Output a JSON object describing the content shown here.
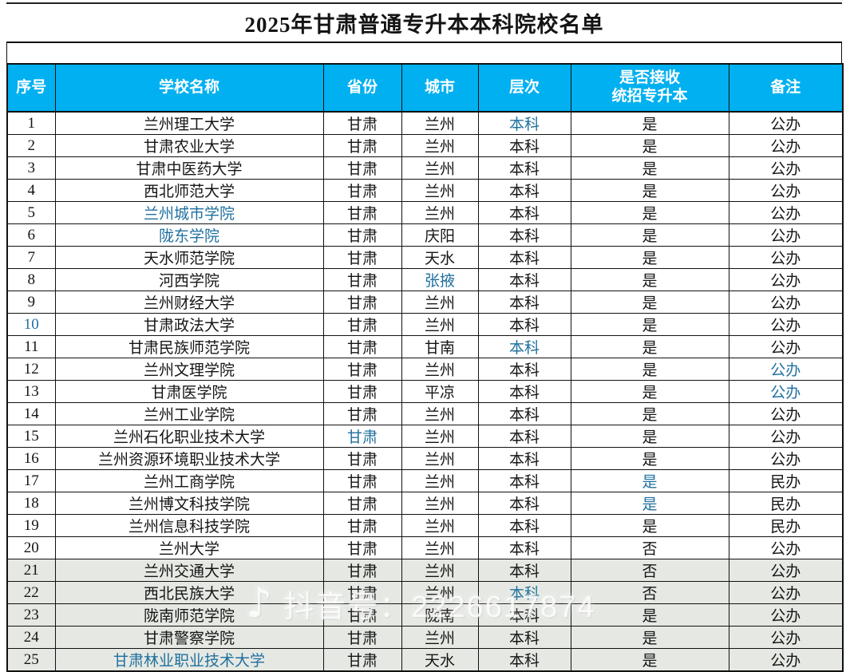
{
  "title": "2025年甘肃普通专升本本科院校名单",
  "colors": {
    "header_bg": "#00b0f0",
    "header_text": "#ffffff",
    "link_blue": "#20709f",
    "shaded_row_bg": "#e6e9e3"
  },
  "watermark": {
    "icon": "douyin-note-icon",
    "note_glyph": "♪",
    "text": "抖音号：2226617874"
  },
  "table": {
    "keys": [
      "no",
      "school",
      "province",
      "city",
      "level",
      "accept",
      "remark"
    ],
    "headers": {
      "no": "序号",
      "school": "学校名称",
      "province": "省份",
      "city": "城市",
      "level": "层次",
      "accept_line1": "是否接收",
      "accept_line2": "统招专升本",
      "remark": "备注"
    },
    "rows": [
      {
        "no": "1",
        "school": "兰州理工大学",
        "province": "甘肃",
        "city": "兰州",
        "level": "本科",
        "accept": "是",
        "remark": "公办",
        "blue": [
          "level"
        ],
        "shade": false
      },
      {
        "no": "2",
        "school": "甘肃农业大学",
        "province": "甘肃",
        "city": "兰州",
        "level": "本科",
        "accept": "是",
        "remark": "公办",
        "blue": [],
        "shade": false
      },
      {
        "no": "3",
        "school": "甘肃中医药大学",
        "province": "甘肃",
        "city": "兰州",
        "level": "本科",
        "accept": "是",
        "remark": "公办",
        "blue": [],
        "shade": false
      },
      {
        "no": "4",
        "school": "西北师范大学",
        "province": "甘肃",
        "city": "兰州",
        "level": "本科",
        "accept": "是",
        "remark": "公办",
        "blue": [],
        "shade": false
      },
      {
        "no": "5",
        "school": "兰州城市学院",
        "province": "甘肃",
        "city": "兰州",
        "level": "本科",
        "accept": "是",
        "remark": "公办",
        "blue": [
          "school"
        ],
        "shade": false
      },
      {
        "no": "6",
        "school": "陇东学院",
        "province": "甘肃",
        "city": "庆阳",
        "level": "本科",
        "accept": "是",
        "remark": "公办",
        "blue": [
          "school"
        ],
        "shade": false
      },
      {
        "no": "7",
        "school": "天水师范学院",
        "province": "甘肃",
        "city": "天水",
        "level": "本科",
        "accept": "是",
        "remark": "公办",
        "blue": [],
        "shade": false
      },
      {
        "no": "8",
        "school": "河西学院",
        "province": "甘肃",
        "city": "张掖",
        "level": "本科",
        "accept": "是",
        "remark": "公办",
        "blue": [
          "city"
        ],
        "shade": false
      },
      {
        "no": "9",
        "school": "兰州财经大学",
        "province": "甘肃",
        "city": "兰州",
        "level": "本科",
        "accept": "是",
        "remark": "公办",
        "blue": [],
        "shade": false
      },
      {
        "no": "10",
        "school": "甘肃政法大学",
        "province": "甘肃",
        "city": "兰州",
        "level": "本科",
        "accept": "是",
        "remark": "公办",
        "blue": [
          "no"
        ],
        "shade": false
      },
      {
        "no": "11",
        "school": "甘肃民族师范学院",
        "province": "甘肃",
        "city": "甘南",
        "level": "本科",
        "accept": "是",
        "remark": "公办",
        "blue": [
          "level"
        ],
        "shade": false
      },
      {
        "no": "12",
        "school": "兰州文理学院",
        "province": "甘肃",
        "city": "兰州",
        "level": "本科",
        "accept": "是",
        "remark": "公办",
        "blue": [
          "remark"
        ],
        "shade": false
      },
      {
        "no": "13",
        "school": "甘肃医学院",
        "province": "甘肃",
        "city": "平凉",
        "level": "本科",
        "accept": "是",
        "remark": "公办",
        "blue": [
          "remark"
        ],
        "shade": false
      },
      {
        "no": "14",
        "school": "兰州工业学院",
        "province": "甘肃",
        "city": "兰州",
        "level": "本科",
        "accept": "是",
        "remark": "公办",
        "blue": [],
        "shade": false
      },
      {
        "no": "15",
        "school": "兰州石化职业技术大学",
        "province": "甘肃",
        "city": "兰州",
        "level": "本科",
        "accept": "是",
        "remark": "公办",
        "blue": [
          "province"
        ],
        "shade": false
      },
      {
        "no": "16",
        "school": "兰州资源环境职业技术大学",
        "province": "甘肃",
        "city": "兰州",
        "level": "本科",
        "accept": "是",
        "remark": "公办",
        "blue": [],
        "shade": false
      },
      {
        "no": "17",
        "school": "兰州工商学院",
        "province": "甘肃",
        "city": "兰州",
        "level": "本科",
        "accept": "是",
        "remark": "民办",
        "blue": [
          "accept"
        ],
        "shade": false
      },
      {
        "no": "18",
        "school": "兰州博文科技学院",
        "province": "甘肃",
        "city": "兰州",
        "level": "本科",
        "accept": "是",
        "remark": "民办",
        "blue": [
          "accept"
        ],
        "shade": false
      },
      {
        "no": "19",
        "school": "兰州信息科技学院",
        "province": "甘肃",
        "city": "兰州",
        "level": "本科",
        "accept": "是",
        "remark": "民办",
        "blue": [],
        "shade": false
      },
      {
        "no": "20",
        "school": "兰州大学",
        "province": "甘肃",
        "city": "兰州",
        "level": "本科",
        "accept": "否",
        "remark": "公办",
        "blue": [],
        "shade": false
      },
      {
        "no": "21",
        "school": "兰州交通大学",
        "province": "甘肃",
        "city": "兰州",
        "level": "本科",
        "accept": "否",
        "remark": "公办",
        "blue": [],
        "shade": true
      },
      {
        "no": "22",
        "school": "西北民族大学",
        "province": "甘肃",
        "city": "兰州",
        "level": "本科",
        "accept": "否",
        "remark": "公办",
        "blue": [
          "level"
        ],
        "shade": true
      },
      {
        "no": "23",
        "school": "陇南师范学院",
        "province": "甘肃",
        "city": "陇南",
        "level": "本科",
        "accept": "是",
        "remark": "公办",
        "blue": [],
        "shade": true
      },
      {
        "no": "24",
        "school": "甘肃警察学院",
        "province": "甘肃",
        "city": "兰州",
        "level": "本科",
        "accept": "是",
        "remark": "公办",
        "blue": [],
        "shade": true
      },
      {
        "no": "25",
        "school": "甘肃林业职业技术大学",
        "province": "甘肃",
        "city": "天水",
        "level": "本科",
        "accept": "是",
        "remark": "公办",
        "blue": [
          "school"
        ],
        "shade": true
      }
    ]
  }
}
